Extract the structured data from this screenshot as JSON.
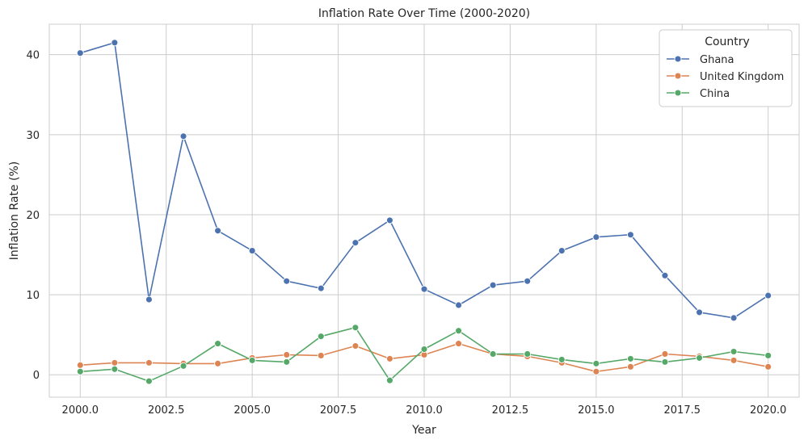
{
  "chart_data": {
    "type": "line",
    "title": "Inflation Rate Over Time (2000-2020)",
    "xlabel": "Year",
    "ylabel": "Inflation Rate (%)",
    "xlim": [
      1999.1,
      2020.9
    ],
    "ylim": [
      -2.8,
      43.8
    ],
    "x_ticks": [
      2000.0,
      2002.5,
      2005.0,
      2007.5,
      2010.0,
      2012.5,
      2015.0,
      2017.5,
      2020.0
    ],
    "y_ticks": [
      0,
      10,
      20,
      30,
      40
    ],
    "grid": true,
    "legend": {
      "title": "Country",
      "position": "top-right"
    },
    "x": [
      2000,
      2001,
      2002,
      2003,
      2004,
      2005,
      2006,
      2007,
      2008,
      2009,
      2010,
      2011,
      2012,
      2013,
      2014,
      2015,
      2016,
      2017,
      2018,
      2019,
      2020
    ],
    "series": [
      {
        "name": "Ghana",
        "color": "#4c72b0",
        "values": [
          40.2,
          41.5,
          9.4,
          29.8,
          18.0,
          15.5,
          11.7,
          10.8,
          16.5,
          19.3,
          10.7,
          8.7,
          11.2,
          11.7,
          15.5,
          17.2,
          17.5,
          12.4,
          7.8,
          7.1,
          9.9
        ]
      },
      {
        "name": "United Kingdom",
        "color": "#dd8452",
        "values": [
          1.2,
          1.5,
          1.5,
          1.4,
          1.4,
          2.1,
          2.5,
          2.4,
          3.6,
          2.0,
          2.5,
          3.9,
          2.6,
          2.3,
          1.5,
          0.4,
          1.0,
          2.6,
          2.3,
          1.8,
          1.0
        ]
      },
      {
        "name": "China",
        "color": "#55a868",
        "values": [
          0.4,
          0.7,
          -0.8,
          1.1,
          3.9,
          1.8,
          1.6,
          4.8,
          5.9,
          -0.7,
          3.2,
          5.5,
          2.6,
          2.6,
          1.9,
          1.4,
          2.0,
          1.6,
          2.1,
          2.9,
          2.4
        ]
      }
    ]
  }
}
